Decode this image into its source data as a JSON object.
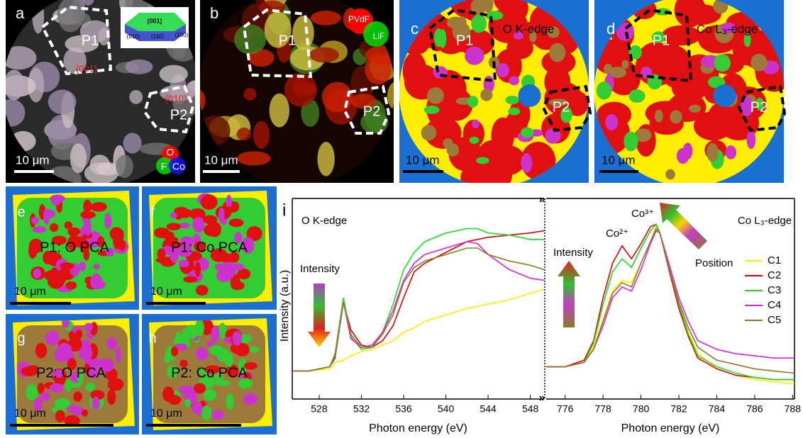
{
  "panels": [
    {
      "texts": [
        "a",
        "P1",
        "P2",
        "{001}",
        "{010}",
        "10 μm",
        "(001)",
        "(010)",
        "(110)",
        "(100)",
        "O",
        "F",
        "Co"
      ]
    },
    {
      "texts": [
        "b",
        "P1",
        "P2",
        "10 μm",
        "PVdF",
        "LiF"
      ]
    },
    {
      "texts": [
        "c",
        "O K-edge",
        "P1",
        "P2",
        "10 μm"
      ]
    },
    {
      "texts": [
        "d",
        "Co L₃-edge",
        "P1",
        "P2",
        "10 μm"
      ]
    },
    {
      "texts": [
        "e",
        "P1: O PCA",
        "10 μm"
      ]
    },
    {
      "texts": [
        "f",
        "P1: Co PCA",
        "10 μm"
      ]
    },
    {
      "texts": [
        "g",
        "P2: O PCA",
        "10 μm"
      ]
    },
    {
      "texts": [
        "h",
        "P2: Co PCA",
        "10 μm"
      ]
    }
  ],
  "panel_label": "i",
  "chart_data": [
    {
      "type": "line",
      "xlabel": "Photon energy (eV)",
      "ylabel": "Intensity (a.u.)",
      "annotations": [
        "O K-edge",
        "Intensity"
      ],
      "x": [
        525.5,
        527,
        529,
        529.5,
        530.3,
        531,
        532,
        533,
        534,
        535,
        536,
        537,
        538,
        540,
        542,
        543,
        544,
        546,
        548,
        549.3
      ],
      "xlim": [
        525.45,
        549.3
      ],
      "xticks": [
        528,
        532,
        536,
        540,
        544,
        548
      ],
      "ylim": [
        0.07,
        1
      ],
      "series": [
        {
          "color": "#ffee00",
          "values": [
            0.2,
            0.2,
            0.21,
            0.24,
            0.25,
            0.27,
            0.29,
            0.3,
            0.32,
            0.34,
            0.38,
            0.4,
            0.43,
            0.46,
            0.49,
            0.5,
            0.51,
            0.53,
            0.56,
            0.58
          ]
        },
        {
          "color": "#e00000",
          "values": [
            0.2,
            0.2,
            0.22,
            0.26,
            0.52,
            0.39,
            0.32,
            0.31,
            0.34,
            0.41,
            0.54,
            0.66,
            0.7,
            0.75,
            0.8,
            0.81,
            0.82,
            0.83,
            0.84,
            0.85
          ]
        },
        {
          "color": "#22dd22",
          "values": [
            0.2,
            0.2,
            0.22,
            0.28,
            0.54,
            0.36,
            0.3,
            0.31,
            0.38,
            0.51,
            0.67,
            0.75,
            0.8,
            0.84,
            0.86,
            0.86,
            0.84,
            0.83,
            0.81,
            0.81
          ]
        },
        {
          "color": "#dd22dd",
          "values": [
            0.2,
            0.2,
            0.22,
            0.27,
            0.52,
            0.35,
            0.31,
            0.32,
            0.38,
            0.48,
            0.62,
            0.7,
            0.74,
            0.77,
            0.8,
            0.79,
            0.74,
            0.67,
            0.63,
            0.62
          ]
        },
        {
          "color": "#8b7a2a",
          "values": [
            0.2,
            0.2,
            0.22,
            0.27,
            0.52,
            0.37,
            0.31,
            0.31,
            0.37,
            0.46,
            0.61,
            0.68,
            0.71,
            0.74,
            0.77,
            0.77,
            0.74,
            0.71,
            0.69,
            0.67
          ]
        }
      ]
    },
    {
      "type": "line",
      "xlabel": "Photon energy (eV)",
      "annotations": [
        "Co L₃-edge",
        "Co²⁺",
        "Co³⁺",
        "Intensity",
        "Position"
      ],
      "x": [
        775,
        776,
        777,
        777.5,
        778,
        778.5,
        779,
        779.5,
        780,
        780.5,
        780.8,
        781,
        781.5,
        782,
        782.5,
        783,
        784,
        785,
        786,
        787,
        788.1
      ],
      "xlim": [
        775,
        788.1
      ],
      "xticks": [
        776,
        778,
        780,
        782,
        784,
        786,
        788
      ],
      "ylim": [
        0.07,
        1
      ],
      "legend": "right",
      "series": [
        {
          "name": "C1",
          "color": "#ffee00",
          "values": [
            0.22,
            0.22,
            0.24,
            0.31,
            0.44,
            0.57,
            0.62,
            0.61,
            0.7,
            0.8,
            0.87,
            0.84,
            0.67,
            0.51,
            0.38,
            0.28,
            0.21,
            0.18,
            0.16,
            0.15,
            0.14
          ]
        },
        {
          "name": "C2",
          "color": "#e00000",
          "values": [
            0.22,
            0.22,
            0.25,
            0.34,
            0.54,
            0.7,
            0.78,
            0.72,
            0.79,
            0.87,
            0.88,
            0.84,
            0.66,
            0.49,
            0.36,
            0.26,
            0.21,
            0.18,
            0.17,
            0.16,
            0.16
          ]
        },
        {
          "name": "C3",
          "color": "#22dd22",
          "values": [
            0.22,
            0.22,
            0.24,
            0.33,
            0.51,
            0.66,
            0.72,
            0.68,
            0.77,
            0.85,
            0.88,
            0.84,
            0.67,
            0.51,
            0.37,
            0.27,
            0.22,
            0.19,
            0.17,
            0.16,
            0.16
          ]
        },
        {
          "name": "C4",
          "color": "#dd22dd",
          "values": [
            0.22,
            0.22,
            0.24,
            0.3,
            0.41,
            0.54,
            0.59,
            0.57,
            0.67,
            0.79,
            0.85,
            0.84,
            0.69,
            0.54,
            0.43,
            0.34,
            0.3,
            0.28,
            0.27,
            0.26,
            0.26
          ]
        },
        {
          "name": "C5",
          "color": "#8b7a2a",
          "values": [
            0.22,
            0.22,
            0.24,
            0.3,
            0.43,
            0.56,
            0.61,
            0.59,
            0.7,
            0.8,
            0.86,
            0.84,
            0.67,
            0.52,
            0.4,
            0.31,
            0.25,
            0.23,
            0.21,
            0.2,
            0.19
          ]
        }
      ]
    }
  ]
}
